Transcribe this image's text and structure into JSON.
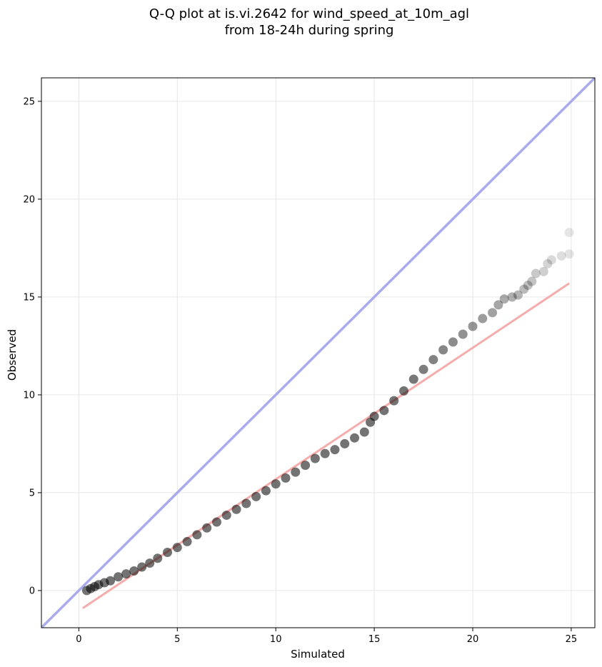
{
  "chart_data": {
    "type": "scatter",
    "title": "Q-Q plot at is.vi.2642 for wind_speed_at_10m_agl",
    "subtitle": "from 18-24h during spring",
    "xlabel": "Simulated",
    "ylabel": "Observed",
    "xlim": [
      -1.9,
      26.2
    ],
    "ylim": [
      -1.9,
      26.2
    ],
    "xticks": [
      0,
      5,
      10,
      15,
      20,
      25
    ],
    "yticks": [
      0,
      5,
      10,
      15,
      20,
      25
    ],
    "xtick_labels": [
      "0",
      "5",
      "10",
      "15",
      "20",
      "25"
    ],
    "ytick_labels": [
      "0",
      "5",
      "10",
      "15",
      "20",
      "25"
    ],
    "grid": true,
    "point_color": "#000000",
    "identity_line": {
      "x": [
        -1.9,
        26.2
      ],
      "y": [
        -1.9,
        26.2
      ],
      "color": "#aaaaee"
    },
    "fit_line": {
      "x": [
        0.2,
        24.9
      ],
      "y": [
        -0.9,
        15.7
      ],
      "color": "#f4a9a8"
    },
    "quantiles": {
      "x": [
        0.4,
        0.6,
        0.8,
        1.0,
        1.3,
        1.6,
        2.0,
        2.4,
        2.8,
        3.2,
        3.6,
        4.0,
        4.5,
        5.0,
        5.5,
        6.0,
        6.5,
        7.0,
        7.5,
        8.0,
        8.5,
        9.0,
        9.5,
        10.0,
        10.5,
        11.0,
        11.5,
        12.0,
        12.5,
        13.0,
        13.5,
        14.0,
        14.5,
        14.8,
        15.0,
        15.5,
        16.0,
        16.5,
        17.0,
        17.5,
        18.0,
        18.5,
        19.0,
        19.5,
        20.0,
        20.5,
        21.0,
        21.3,
        21.6,
        22.0,
        22.3,
        22.6,
        22.8,
        23.0,
        23.2,
        23.6,
        23.8,
        24.0,
        24.5,
        24.9,
        24.9
      ],
      "y": [
        0.0,
        0.1,
        0.2,
        0.3,
        0.4,
        0.5,
        0.7,
        0.85,
        1.0,
        1.2,
        1.4,
        1.65,
        1.95,
        2.2,
        2.5,
        2.85,
        3.2,
        3.5,
        3.85,
        4.15,
        4.45,
        4.8,
        5.1,
        5.45,
        5.75,
        6.05,
        6.4,
        6.75,
        7.0,
        7.2,
        7.5,
        7.8,
        8.1,
        8.6,
        8.9,
        9.2,
        9.7,
        10.2,
        10.8,
        11.3,
        11.8,
        12.3,
        12.7,
        13.1,
        13.5,
        13.9,
        14.2,
        14.6,
        14.9,
        15.0,
        15.1,
        15.4,
        15.6,
        15.8,
        16.2,
        16.3,
        16.7,
        16.9,
        17.1,
        17.2,
        18.3
      ]
    }
  }
}
